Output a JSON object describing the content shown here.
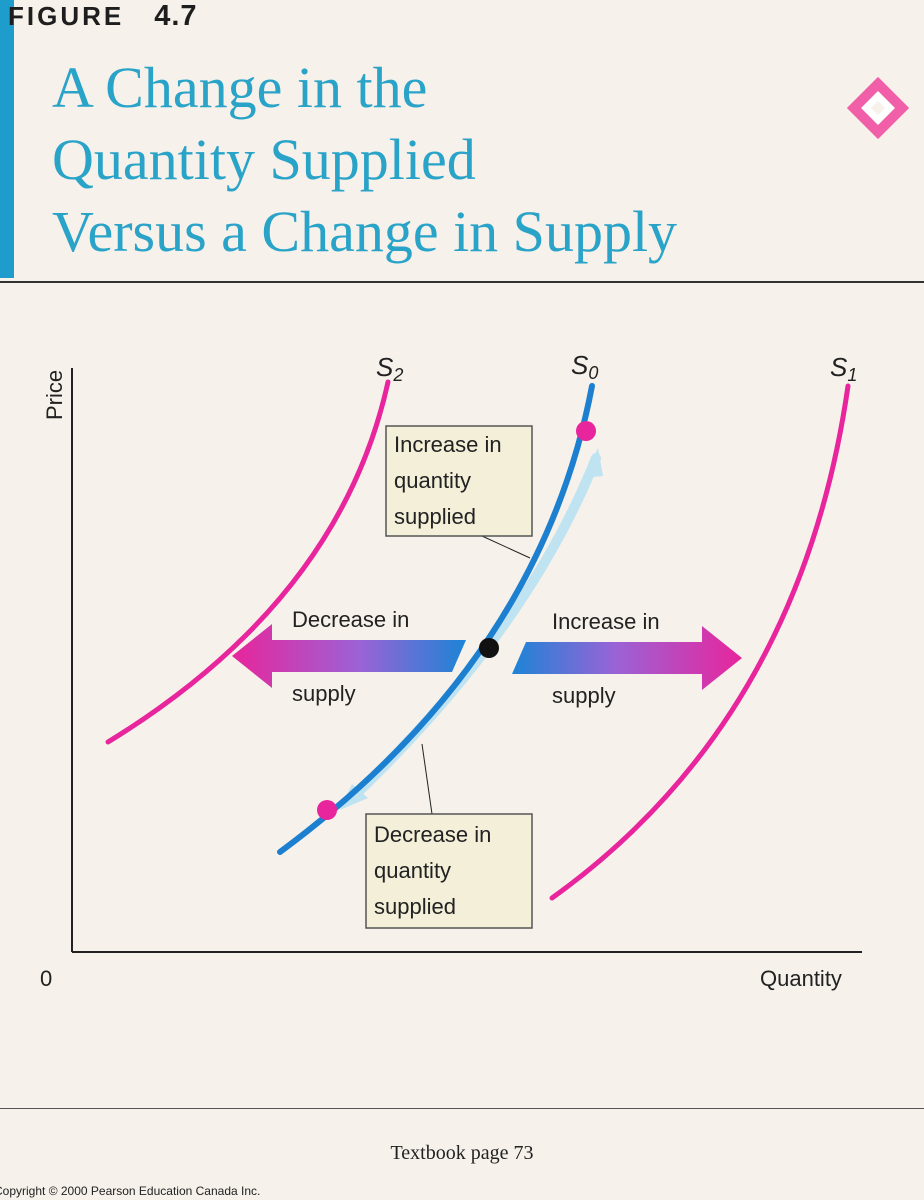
{
  "figure": {
    "label": "FIGURE",
    "number": "4.7"
  },
  "title": {
    "lines": [
      "A Change in the",
      "Quantity Supplied",
      "Versus a Change in Supply"
    ]
  },
  "colors": {
    "accent_blue": "#1e9ccb",
    "magenta": "#e8259c",
    "supply_blue": "#1c7fcf",
    "title_blue": "#2aa3c8"
  },
  "icons": {
    "corner": "pink-diamond-icon"
  },
  "diagram": {
    "y_axis_label": "Price",
    "x_axis_label": "Quantity",
    "origin_label": "0",
    "curves": [
      {
        "id": "S2",
        "base": "S",
        "sub": "2"
      },
      {
        "id": "S0",
        "base": "S",
        "sub": "0"
      },
      {
        "id": "S1",
        "base": "S",
        "sub": "1"
      }
    ],
    "annotations": {
      "increase_qs": [
        "Increase in",
        "quantity",
        "supplied"
      ],
      "decrease_qs": [
        "Decrease in",
        "quantity",
        "supplied"
      ],
      "decrease_supply": {
        "top": "Decrease in",
        "bottom": "supply"
      },
      "increase_supply": {
        "top": "Increase in",
        "bottom": "supply"
      }
    }
  },
  "footer": {
    "page_ref": "Textbook page 73",
    "copyright": "Copyright © 2000 Pearson Education Canada Inc."
  }
}
